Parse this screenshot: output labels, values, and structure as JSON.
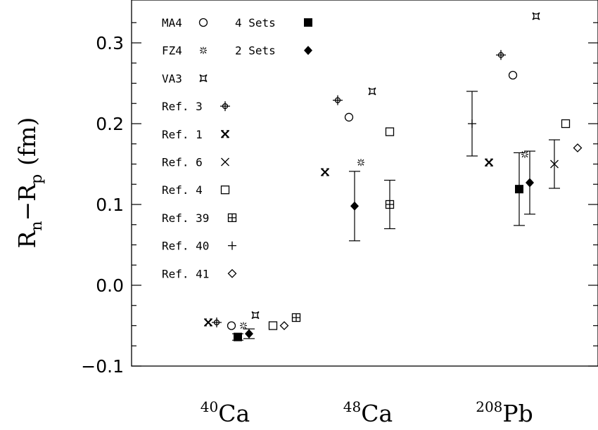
{
  "chart_data": {
    "type": "scatter",
    "title": "",
    "xlabel": "",
    "ylabel": {
      "main": "R",
      "sub_n": "n",
      "minus": "−R",
      "sub_p": "p",
      "unit": "(fm)"
    },
    "ylim": [
      -0.1,
      0.34
    ],
    "yticks": [
      {
        "value": -0.1,
        "label": "−0.1"
      },
      {
        "value": 0.0,
        "label": "0.0"
      },
      {
        "value": 0.1,
        "label": "0.1"
      },
      {
        "value": 0.2,
        "label": "0.2"
      },
      {
        "value": 0.3,
        "label": "0.3"
      }
    ],
    "categories": [
      {
        "mass": "40",
        "element": "Ca"
      },
      {
        "mass": "48",
        "element": "Ca"
      },
      {
        "mass": "208",
        "element": "Pb"
      }
    ],
    "grid": false,
    "legend_position": "top-left",
    "series": [
      {
        "name": "MA4",
        "symbol": "circle",
        "points": [
          {
            "nucleus": "40Ca",
            "y": -0.05
          },
          {
            "nucleus": "48Ca",
            "y": 0.208
          },
          {
            "nucleus": "208Pb",
            "y": 0.26
          }
        ]
      },
      {
        "name": "FZ4",
        "symbol": "sparkle",
        "points": [
          {
            "nucleus": "40Ca",
            "y": -0.05
          },
          {
            "nucleus": "48Ca",
            "y": 0.152
          },
          {
            "nucleus": "208Pb",
            "y": 0.162
          }
        ]
      },
      {
        "name": "VA3",
        "symbol": "star4",
        "points": [
          {
            "nucleus": "40Ca",
            "y": -0.037
          },
          {
            "nucleus": "48Ca",
            "y": 0.24
          },
          {
            "nucleus": "208Pb",
            "y": 0.333
          }
        ]
      },
      {
        "name": "Ref. 3",
        "symbol": "circle-plus",
        "points": [
          {
            "nucleus": "40Ca",
            "y": -0.046
          },
          {
            "nucleus": "48Ca",
            "y": 0.229
          },
          {
            "nucleus": "208Pb",
            "y": 0.285
          }
        ]
      },
      {
        "name": "Ref. 1",
        "symbol": "x-bold",
        "points": [
          {
            "nucleus": "40Ca",
            "y": -0.046
          },
          {
            "nucleus": "48Ca",
            "y": 0.14
          },
          {
            "nucleus": "208Pb",
            "y": 0.152
          }
        ]
      },
      {
        "name": "Ref. 6",
        "symbol": "x",
        "points": [
          {
            "nucleus": "208Pb",
            "y": 0.15,
            "err_low": 0.12,
            "err_high": 0.18
          }
        ]
      },
      {
        "name": "Ref. 4",
        "symbol": "square",
        "points": [
          {
            "nucleus": "40Ca",
            "y": -0.05
          },
          {
            "nucleus": "48Ca",
            "y": 0.19
          },
          {
            "nucleus": "208Pb",
            "y": 0.2
          }
        ]
      },
      {
        "name": "Ref. 39",
        "symbol": "square-plus",
        "points": [
          {
            "nucleus": "40Ca",
            "y": -0.04
          },
          {
            "nucleus": "48Ca",
            "y": 0.1,
            "err_low": 0.07,
            "err_high": 0.13
          }
        ]
      },
      {
        "name": "Ref. 40",
        "symbol": "plus",
        "points": [
          {
            "nucleus": "208Pb",
            "y": 0.2,
            "err_low": 0.16,
            "err_high": 0.24
          }
        ]
      },
      {
        "name": "Ref. 41",
        "symbol": "diamond",
        "points": [
          {
            "nucleus": "40Ca",
            "y": -0.05
          },
          {
            "nucleus": "208Pb",
            "y": 0.17
          }
        ]
      },
      {
        "name": "4 Sets",
        "symbol": "filled-square",
        "points": [
          {
            "nucleus": "40Ca",
            "y": -0.064,
            "err_low": -0.068,
            "err_high": -0.06
          },
          {
            "nucleus": "208Pb",
            "y": 0.119,
            "err_low": 0.074,
            "err_high": 0.164
          }
        ]
      },
      {
        "name": "2 Sets",
        "symbol": "filled-diamond",
        "points": [
          {
            "nucleus": "40Ca",
            "y": -0.06,
            "err_low": -0.066,
            "err_high": -0.054
          },
          {
            "nucleus": "48Ca",
            "y": 0.098,
            "err_low": 0.055,
            "err_high": 0.141
          },
          {
            "nucleus": "208Pb",
            "y": 0.127,
            "err_low": 0.088,
            "err_high": 0.166
          }
        ]
      }
    ]
  }
}
